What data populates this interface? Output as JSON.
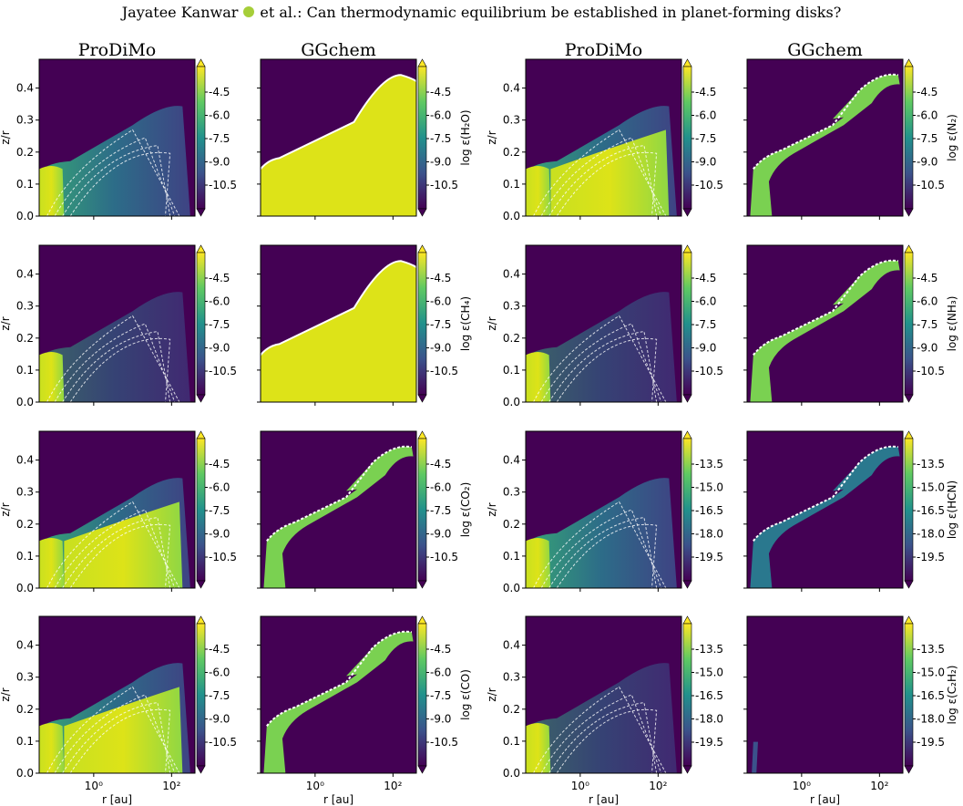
{
  "header": {
    "authors_prefix": "Jayatee Kanwar",
    "authors_suffix": "et al.: Can thermodynamic equilibrium be established in planet-forming disks?"
  },
  "colors": {
    "low": "#440154",
    "high": "#dde318",
    "contour": "#ffffff"
  },
  "chart_data": {
    "type": "heatmap",
    "column_titles": [
      "ProDiMo",
      "GGchem",
      "ProDiMo",
      "GGchem"
    ],
    "xlabel": "r [au]",
    "ylabel": "z/r",
    "x_ticks": [
      "10⁰",
      "10²"
    ],
    "y_ticks": [
      "0.0",
      "0.1",
      "0.2",
      "0.3",
      "0.4"
    ],
    "x_scale": "log",
    "ylim": [
      0,
      0.49
    ],
    "colorbar_ticks_standard": [
      "-4.5",
      "-6.0",
      "-7.5",
      "-9.0",
      "-10.5"
    ],
    "colorbar_ticks_deep": [
      "-13.5",
      "-15.0",
      "-16.5",
      "-18.0",
      "-19.5"
    ],
    "pairs": [
      {
        "species_label": "log ε(H₂O)",
        "ticks": "standard"
      },
      {
        "species_label": "log ε(N₂)",
        "ticks": "standard"
      },
      {
        "species_label": "log ε(CH₄)",
        "ticks": "standard"
      },
      {
        "species_label": "log ε(NH₃)",
        "ticks": "standard"
      },
      {
        "species_label": "log ε(CO₂)",
        "ticks": "standard"
      },
      {
        "species_label": "log ε(HCN)",
        "ticks": "deep"
      },
      {
        "species_label": "log ε(CO)",
        "ticks": "standard"
      },
      {
        "species_label": "log ε(C₂H₂)",
        "ticks": "deep"
      }
    ]
  }
}
